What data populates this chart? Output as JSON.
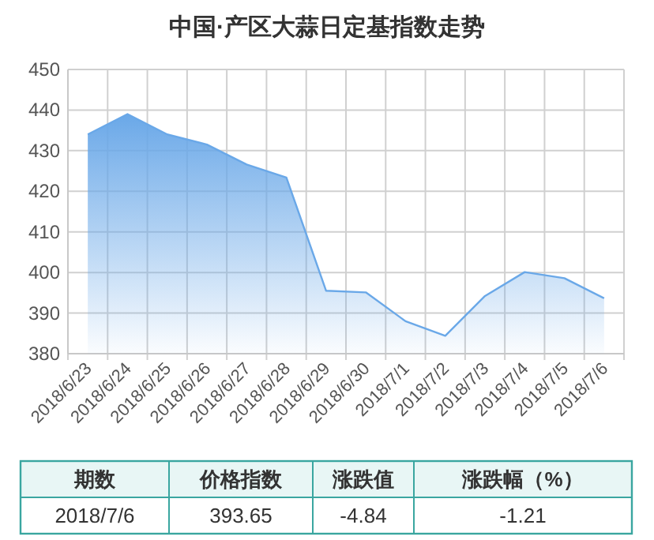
{
  "chart_data": [
    {
      "type": "area",
      "title": "中国·产区大蒜日定基指数走势",
      "categories": [
        "2018/6/23",
        "2018/6/24",
        "2018/6/25",
        "2018/6/26",
        "2018/6/27",
        "2018/6/28",
        "2018/6/29",
        "2018/6/30",
        "2018/7/1",
        "2018/7/2",
        "2018/7/3",
        "2018/7/4",
        "2018/7/5",
        "2018/7/6"
      ],
      "series": [
        {
          "color": "#6aa8e8",
          "values": [
            434,
            439,
            434,
            431.5,
            426.6,
            423.4,
            395.5,
            395.1,
            388,
            384.4,
            394.2,
            400.1,
            398.6,
            393.65
          ]
        }
      ],
      "ylim": [
        380,
        450
      ],
      "yticks": [
        380,
        390,
        400,
        410,
        420,
        430,
        440,
        450
      ],
      "grid": true,
      "marker": "none",
      "line_style": "solid"
    },
    {
      "type": "other",
      "categories": [
        "期数",
        "价格指数",
        "涨跌值",
        "涨跌幅（%）"
      ],
      "annotations": [
        "2018/7/6",
        "393.65",
        "-4.84",
        "-1.21"
      ]
    }
  ]
}
